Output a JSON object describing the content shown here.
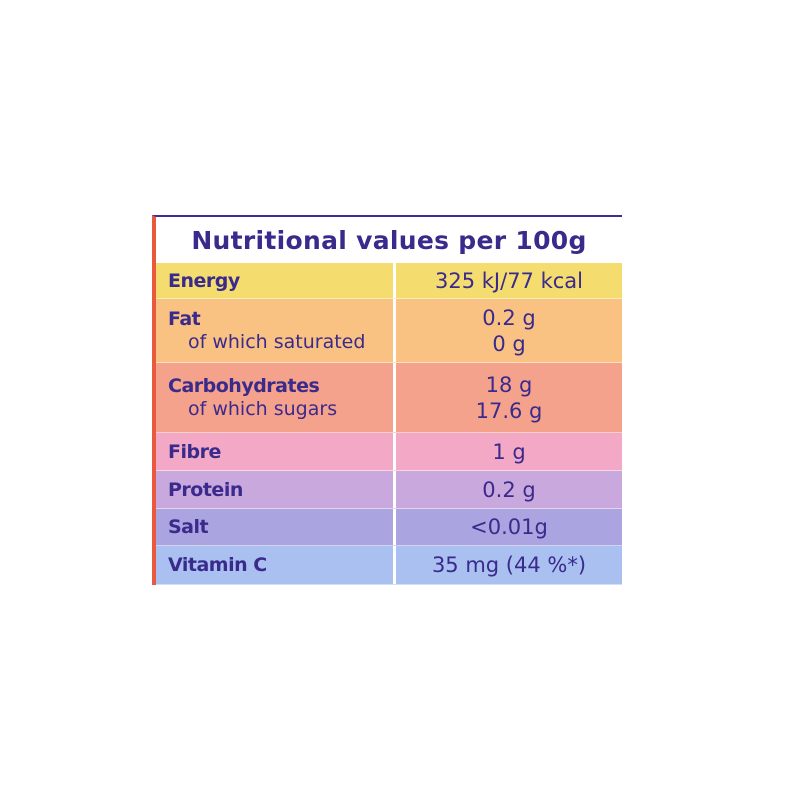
{
  "table": {
    "title": "Nutritional values per 100g",
    "rows": [
      {
        "label": "Energy",
        "value": "325 kJ/77 kcal"
      },
      {
        "label": "Fat",
        "value": "0.2 g",
        "sub_label": "of which saturated",
        "sub_value": "0 g"
      },
      {
        "label": "Carbohydrates",
        "value": "18 g",
        "sub_label": "of which sugars",
        "sub_value": "17.6 g"
      },
      {
        "label": "Fibre",
        "value": "1 g"
      },
      {
        "label": "Protein",
        "value": "0.2 g"
      },
      {
        "label": "Salt",
        "value": "<0.01g"
      },
      {
        "label": "Vitamin C",
        "value": "35 mg (44 %*)"
      }
    ]
  }
}
